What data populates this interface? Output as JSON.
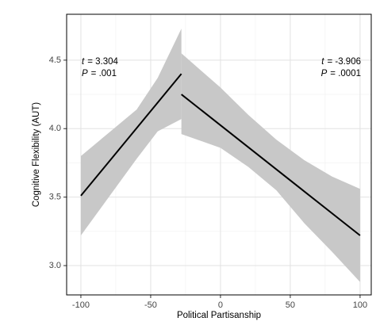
{
  "chart_data": {
    "type": "line",
    "x_label": "Political Partisanship",
    "y_label": "Cognitive Flexibility (AUT)",
    "xlim": [
      -110.2,
      108
    ],
    "ylim": [
      2.786,
      4.835
    ],
    "xticks": [
      -100,
      -50,
      0,
      50,
      100
    ],
    "yticks": [
      {
        "value": 3.0,
        "label": "3.0"
      },
      {
        "value": 3.5,
        "label": "3.5"
      },
      {
        "value": 4.0,
        "label": "4.0"
      },
      {
        "value": 4.5,
        "label": "4.5"
      }
    ],
    "grid": true,
    "minor_grid": true,
    "band_color": "#c8c8c8",
    "series": [
      {
        "color": "#000000",
        "x": [
          -100,
          -28
        ],
        "values": [
          3.51,
          4.4
        ]
      },
      {
        "color": "#000000",
        "x": [
          -28,
          100
        ],
        "values": [
          4.25,
          3.22
        ]
      }
    ],
    "bands": [
      {
        "x": [
          -100,
          -80,
          -60,
          -45,
          -28
        ],
        "upper": [
          3.8,
          3.97,
          4.14,
          4.37,
          4.73
        ],
        "lower": [
          3.22,
          3.5,
          3.78,
          3.98,
          4.07
        ]
      },
      {
        "x": [
          -28,
          0,
          20,
          40,
          60,
          80,
          100
        ],
        "upper": [
          4.55,
          4.3,
          4.1,
          3.92,
          3.77,
          3.65,
          3.56
        ],
        "lower": [
          3.96,
          3.86,
          3.72,
          3.55,
          3.31,
          3.1,
          2.88
        ]
      }
    ],
    "annotations": [
      {
        "lines": [
          {
            "symbol": "t",
            "text": "= 3.304"
          },
          {
            "symbol": "P",
            "text": "= .001"
          }
        ]
      },
      {
        "lines": [
          {
            "symbol": "t",
            "text": "= -3.906"
          },
          {
            "symbol": "P",
            "text": "= .0001"
          }
        ]
      }
    ]
  }
}
